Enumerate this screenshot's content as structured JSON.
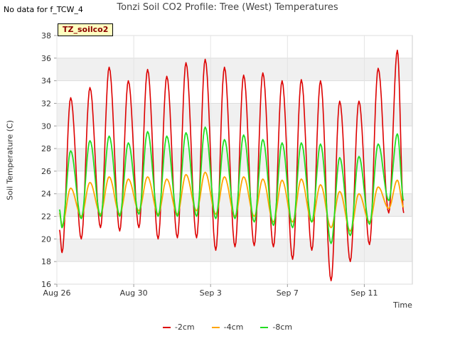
{
  "page": {
    "no_data_text": "No data for f_TCW_4",
    "badge_text": "TZ_soilco2"
  },
  "chart_data": {
    "type": "line",
    "title": "Tonzi Soil CO2 Profile: Tree (West) Temperatures",
    "xlabel": "Time",
    "ylabel": "Soil Temperature (C)",
    "ylim": [
      16,
      38
    ],
    "yticks": [
      16,
      18,
      20,
      22,
      24,
      26,
      28,
      30,
      32,
      34,
      36,
      38
    ],
    "xlim": [
      0,
      18.5
    ],
    "xticks": [
      {
        "pos": 0,
        "label": "Aug 26"
      },
      {
        "pos": 4,
        "label": "Aug 30"
      },
      {
        "pos": 8,
        "label": "Sep 3"
      },
      {
        "pos": 12,
        "label": "Sep 7"
      },
      {
        "pos": 16,
        "label": "Sep 11"
      }
    ],
    "x_unit": "days since Aug 26",
    "grid": true,
    "legend_position": "bottom",
    "days": [
      0,
      1,
      2,
      3,
      4,
      5,
      6,
      7,
      8,
      9,
      10,
      11,
      12,
      13,
      14,
      15,
      16,
      17
    ],
    "series": [
      {
        "name": "-2cm",
        "color": "#dd0000",
        "daily_min": [
          18.8,
          20.0,
          21.0,
          20.7,
          21.0,
          20.0,
          20.1,
          20.1,
          19.0,
          19.3,
          19.4,
          19.3,
          18.2,
          19.0,
          16.3,
          18.0,
          19.5,
          22.3
        ],
        "daily_max": [
          32.5,
          33.4,
          35.2,
          34.0,
          35.0,
          34.4,
          35.6,
          35.9,
          35.2,
          34.5,
          34.7,
          34.0,
          34.1,
          34.0,
          32.2,
          32.2,
          35.1,
          36.7
        ],
        "start": 20.8,
        "end": 22.3
      },
      {
        "name": "-4cm",
        "color": "#ffa500",
        "daily_min": [
          21.2,
          22.0,
          22.2,
          22.2,
          22.5,
          22.2,
          22.2,
          22.5,
          22.2,
          22.0,
          22.0,
          21.5,
          21.5,
          21.5,
          21.0,
          20.7,
          21.5,
          22.7
        ],
        "daily_max": [
          24.5,
          25.0,
          25.5,
          25.3,
          25.5,
          25.3,
          25.7,
          25.9,
          25.5,
          25.5,
          25.3,
          25.2,
          25.3,
          24.8,
          24.2,
          24.0,
          24.6,
          25.2
        ],
        "start": 22.3,
        "end": 22.8
      },
      {
        "name": "-8cm",
        "color": "#22dd22",
        "daily_min": [
          21.0,
          21.8,
          22.0,
          22.0,
          22.2,
          22.0,
          22.0,
          22.0,
          21.8,
          21.8,
          21.5,
          21.2,
          21.0,
          21.5,
          19.6,
          20.3,
          21.3,
          23.4
        ],
        "daily_max": [
          27.8,
          28.7,
          29.1,
          28.5,
          29.5,
          29.1,
          29.4,
          29.9,
          28.8,
          29.2,
          28.8,
          28.5,
          28.5,
          28.4,
          27.2,
          27.3,
          28.4,
          29.3
        ],
        "start": 22.6,
        "end": 23.4
      }
    ]
  }
}
